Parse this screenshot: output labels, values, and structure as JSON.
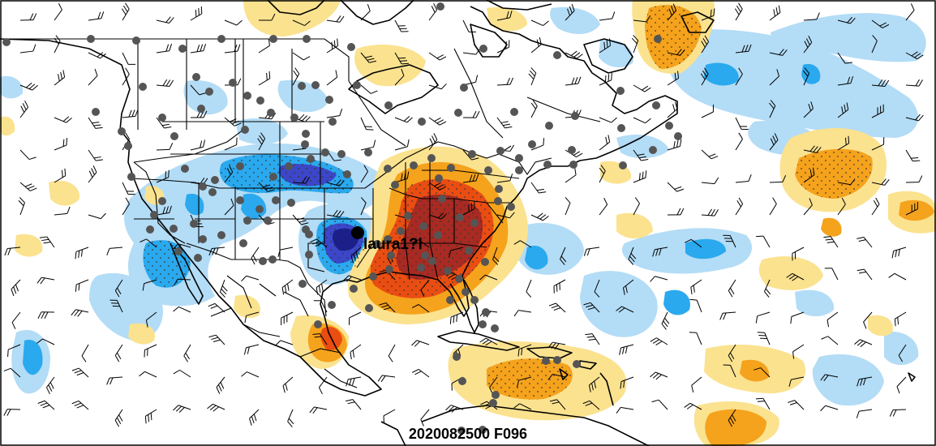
{
  "storm": {
    "label": "laura1?l"
  },
  "valid_time": "2020082500 F096",
  "colors": {
    "light_blue": "#b3dcf6",
    "mid_blue": "#2aa9ee",
    "dark_blue": "#3c46c8",
    "navy": "#1a1f8c",
    "light_yellow": "#fbe28f",
    "orange": "#f5a21c",
    "red_orange": "#ea4d12",
    "dark_red": "#a82a22",
    "station": "#555555",
    "storm_center": "#000000"
  },
  "icons": {
    "station": "gray-dot-icon",
    "wind": "wind-barb-icon",
    "storm": "black-dot-icon"
  }
}
